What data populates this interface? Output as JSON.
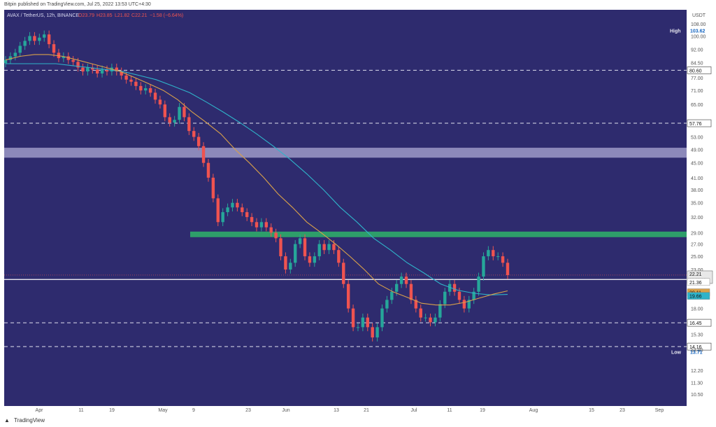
{
  "header": {
    "publisher_line": "Bitpin published on TradingView.com, Jul 25, 2022 13:53 UTC+4:30",
    "symbol_line": "AVAX / TetherUS, 12h, BINANCE",
    "ohlc": {
      "O": "23.79",
      "H": "23.85",
      "L": "21.82",
      "C": "22.21",
      "change": "−1.58 (−6.64%)"
    }
  },
  "footer": {
    "brand": "TradingView",
    "logo_icon": "tradingview-logo-icon"
  },
  "colors": {
    "background": "#2e2b6e",
    "up_candle": "#26a69a",
    "down_candle": "#ef5350",
    "ma_fast": "#d9a14a",
    "ma_slow": "#2fb3c9",
    "resistance_zone": "#9c9ac8",
    "support_zone": "#2e9e6a",
    "current_price_label": "#e8e8e8"
  },
  "chart_data": {
    "type": "candlestick",
    "y_scale": "log",
    "y_currency": "USDT",
    "y_ticks": [
      "108.00",
      "100.00",
      "92.00",
      "84.50",
      "77.00",
      "71.00",
      "65.00",
      "53.00",
      "49.00",
      "45.00",
      "41.00",
      "38.00",
      "35.00",
      "32.00",
      "29.00",
      "27.00",
      "25.00",
      "23.00",
      "18.00",
      "15.30",
      "13.90",
      "12.20",
      "11.30",
      "10.50"
    ],
    "x_ticks": [
      "Apr",
      "11",
      "19",
      "May",
      "9",
      "23",
      "Jun",
      "13",
      "21",
      "Jul",
      "11",
      "19",
      "Aug",
      "15",
      "23",
      "Sep"
    ],
    "high": {
      "label": "High",
      "value": "103.62"
    },
    "low": {
      "label": "Low",
      "value": "13.71"
    },
    "dashed_levels": [
      "80.60",
      "57.76",
      "16.45",
      "14.16"
    ],
    "current_price": {
      "value": "22.21",
      "countdown": "02:36:29"
    },
    "ma_labels": [
      "21.36",
      "20.11",
      "19.66"
    ],
    "zones": [
      {
        "name": "resistance",
        "from": 46.5,
        "to": 49.5
      },
      {
        "name": "support",
        "from": 28.2,
        "to": 29.2
      }
    ],
    "horizontal_line": 21.6,
    "closes": [
      86,
      88,
      90,
      94,
      97,
      100,
      97,
      99,
      101,
      95,
      90,
      87,
      88,
      86,
      85,
      82,
      80,
      82,
      81,
      79,
      81,
      80,
      82,
      80,
      78,
      76,
      75,
      73,
      71,
      72,
      70,
      67,
      65,
      60,
      58,
      59,
      64,
      60,
      55,
      53,
      50,
      45,
      41,
      36,
      31,
      33,
      34,
      35,
      34,
      33,
      32,
      31,
      30,
      31,
      30,
      29,
      28,
      25,
      23,
      24,
      27,
      28,
      25,
      24,
      25,
      27,
      26,
      27,
      26,
      24,
      21,
      18,
      16,
      16,
      17,
      16,
      15,
      16,
      18,
      19,
      20,
      21,
      22,
      21,
      19,
      18,
      17,
      17,
      16.5,
      17,
      18.5,
      20,
      21,
      20,
      19,
      18,
      19,
      20,
      22,
      25,
      26,
      25,
      25,
      24,
      22.21
    ],
    "ma_fast": [
      86,
      88,
      89,
      89,
      88,
      86,
      84,
      82,
      80,
      77,
      74,
      71,
      67,
      62,
      58,
      54,
      49,
      45,
      41,
      37,
      34,
      31,
      29,
      27,
      25,
      23,
      21,
      20,
      19.3,
      18.6,
      18.4,
      18.4,
      18.7,
      19.2,
      19.7,
      20.11
    ],
    "ma_slow": [
      84,
      84,
      84,
      84,
      83,
      82,
      81,
      80,
      78,
      76,
      73,
      70,
      66,
      62,
      58,
      54,
      50,
      46,
      42,
      38,
      34,
      31,
      28,
      26,
      24,
      22.5,
      21,
      20.2,
      19.8,
      19.6,
      19.66
    ]
  }
}
